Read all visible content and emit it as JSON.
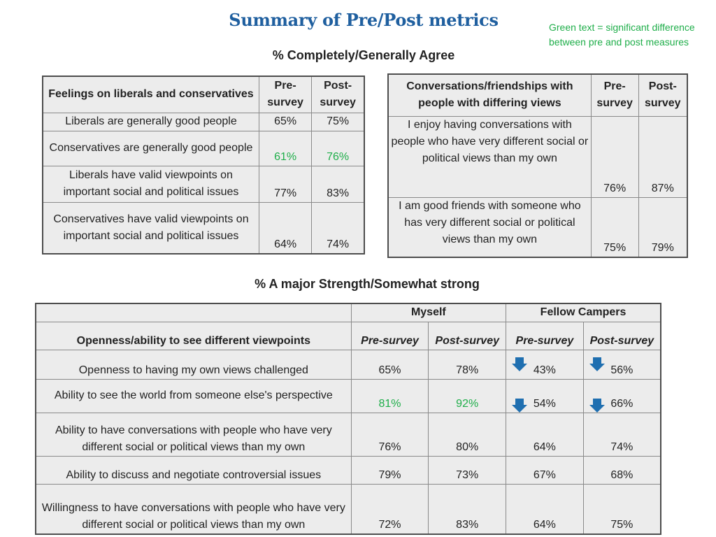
{
  "title": "Summary of Pre/Post metrics",
  "legend_note": "Green text = significant difference between pre and post measures",
  "colors": {
    "title": "#1f5f9f",
    "significant": "#1fae4a",
    "arrow": "#1f6fb0"
  },
  "section1_title": "% Completely/Generally Agree",
  "section2_title": "% A major Strength/Somewhat strong",
  "table1": {
    "header": [
      "Feelings on liberals and conservatives",
      "Pre-survey",
      "Post-survey"
    ],
    "rows": [
      {
        "label": "Liberals are generally good people",
        "pre": "65%",
        "post": "75%"
      },
      {
        "label": "Conservatives are generally good people",
        "pre": "61%",
        "post": "76%"
      },
      {
        "label": "Liberals have valid viewpoints on important social and political issues",
        "pre": "77%",
        "post": "83%"
      },
      {
        "label": "Conservatives have valid viewpoints on important social and political issues",
        "pre": "64%",
        "post": "74%"
      }
    ]
  },
  "table2": {
    "header": [
      "Conversations/friendships with people with differing views",
      "Pre-survey",
      "Post-survey"
    ],
    "rows": [
      {
        "label": "I enjoy having conversations with people who have very different social or political views than my own",
        "pre": "76%",
        "post": "87%"
      },
      {
        "label": "I am good friends with someone who has very different social or political views than my own",
        "pre": "75%",
        "post": "79%"
      }
    ]
  },
  "table3": {
    "group_myself": "Myself",
    "group_fellow": "Fellow Campers",
    "header_label": "Openness/ability to see different viewpoints",
    "pre_label": "Pre-survey",
    "post_label": "Post-survey",
    "rows": [
      {
        "label": "Openness to having my own views challenged",
        "my_pre": "65%",
        "my_post": "78%",
        "fc_pre": "43%",
        "fc_post": "56%"
      },
      {
        "label": "Ability to see the world from someone else's perspective",
        "my_pre": "81%",
        "my_post": "92%",
        "fc_pre": "54%",
        "fc_post": "66%"
      },
      {
        "label": "Ability to have conversations with people who have very different social or political views than my own",
        "my_pre": "76%",
        "my_post": "80%",
        "fc_pre": "64%",
        "fc_post": "74%"
      },
      {
        "label": "Ability to discuss and negotiate controversial issues",
        "my_pre": "79%",
        "my_post": "73%",
        "fc_pre": "67%",
        "fc_post": "68%"
      },
      {
        "label": "Willingness to have conversations with people who have very different social or political views than my own",
        "my_pre": "72%",
        "my_post": "83%",
        "fc_pre": "64%",
        "fc_post": "75%"
      }
    ]
  }
}
